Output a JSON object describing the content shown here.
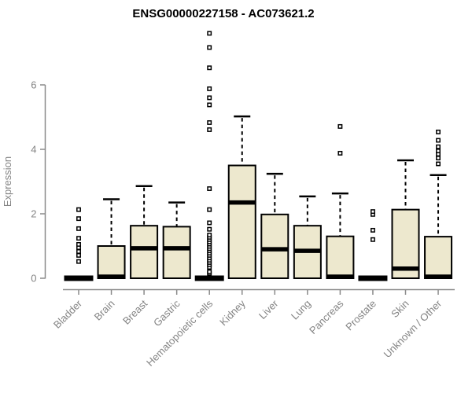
{
  "title": "ENSG00000227158 - AC073621.2",
  "chart_data": {
    "type": "boxplot",
    "title": "ENSG00000227158 - AC073621.2",
    "xlabel": "",
    "ylabel": "Expression",
    "ylim": [
      0,
      6
    ],
    "yticks": [
      0,
      2,
      4,
      6
    ],
    "grid": false,
    "categories": [
      "Bladder",
      "Brain",
      "Breast",
      "Gastric",
      "Hematopoietic cells",
      "Kidney",
      "Liver",
      "Lung",
      "Pancreas",
      "Prostate",
      "Skin",
      "Unknown / Other"
    ],
    "boxes": [
      {
        "label": "Bladder",
        "whisker_low": 0,
        "q1": 0,
        "median": 0,
        "q3": 0,
        "whisker_high": 0,
        "outliers": [
          0.52,
          0.71,
          0.83,
          0.95,
          1.05,
          1.24,
          1.54,
          1.85,
          2.13
        ]
      },
      {
        "label": "Brain",
        "whisker_low": 0,
        "q1": 0,
        "median": 0.05,
        "q3": 1.0,
        "whisker_high": 2.45,
        "outliers": []
      },
      {
        "label": "Breast",
        "whisker_low": 0,
        "q1": 0,
        "median": 0.93,
        "q3": 1.63,
        "whisker_high": 2.86,
        "outliers": []
      },
      {
        "label": "Gastric",
        "whisker_low": 0,
        "q1": 0,
        "median": 0.93,
        "q3": 1.6,
        "whisker_high": 2.35,
        "outliers": []
      },
      {
        "label": "Hematopoietic cells",
        "whisker_low": 0,
        "q1": 0,
        "median": 0,
        "q3": 0,
        "whisker_high": 0,
        "outliers": [
          0.15,
          0.2,
          0.34,
          0.42,
          0.49,
          0.56,
          0.63,
          0.71,
          0.78,
          0.85,
          0.92,
          0.99,
          1.06,
          1.13,
          1.2,
          1.27,
          1.34,
          1.52,
          1.72,
          2.13,
          2.78,
          4.61,
          4.83,
          5.38,
          5.6,
          5.88,
          6.53,
          7.16,
          7.6
        ]
      },
      {
        "label": "Kidney",
        "whisker_low": 0,
        "q1": 0,
        "median": 2.35,
        "q3": 3.5,
        "whisker_high": 5.02,
        "outliers": []
      },
      {
        "label": "Liver",
        "whisker_low": 0,
        "q1": 0,
        "median": 0.9,
        "q3": 1.98,
        "whisker_high": 3.24,
        "outliers": []
      },
      {
        "label": "Lung",
        "whisker_low": 0,
        "q1": 0,
        "median": 0.85,
        "q3": 1.63,
        "whisker_high": 2.54,
        "outliers": []
      },
      {
        "label": "Pancreas",
        "whisker_low": 0,
        "q1": 0,
        "median": 0.05,
        "q3": 1.3,
        "whisker_high": 2.63,
        "outliers": [
          3.88,
          4.71
        ]
      },
      {
        "label": "Prostate",
        "whisker_low": 0,
        "q1": 0,
        "median": 0,
        "q3": 0,
        "whisker_high": 0,
        "outliers": [
          1.2,
          1.49,
          1.98,
          2.07
        ]
      },
      {
        "label": "Skin",
        "whisker_low": 0,
        "q1": 0,
        "median": 0.3,
        "q3": 2.13,
        "whisker_high": 3.66,
        "outliers": []
      },
      {
        "label": "Unknown / Other",
        "whisker_low": 0,
        "q1": 0,
        "median": 0.05,
        "q3": 1.29,
        "whisker_high": 3.2,
        "outliers": [
          3.55,
          3.73,
          3.85,
          3.95,
          4.08,
          4.28,
          4.54
        ]
      }
    ],
    "colors": {
      "box_fill": "#EDE8CE",
      "box_stroke": "#000000",
      "median": "#000000",
      "whisker": "#000000",
      "outlier_stroke": "#000000",
      "outlier_fill": "#ffffff",
      "axis": "#8a8a8a",
      "tick_text": "#848484",
      "title_text": "#000000",
      "background": "#ffffff"
    },
    "legend": null
  }
}
